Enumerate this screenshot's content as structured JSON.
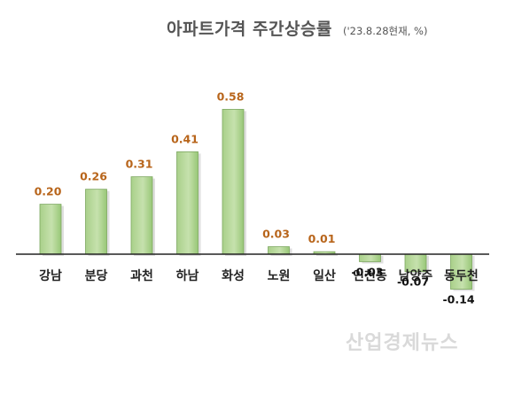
{
  "chart_data": {
    "type": "bar",
    "title": "아파트가격 주간상승률",
    "subtitle": "('23.8.28현재, %)",
    "categories": [
      "강남",
      "분당",
      "과천",
      "하남",
      "화성",
      "노원",
      "일산",
      "인천동",
      "남양주",
      "동두천"
    ],
    "values": [
      0.2,
      0.26,
      0.31,
      0.41,
      0.58,
      0.03,
      0.01,
      -0.03,
      -0.07,
      -0.14
    ],
    "value_labels": [
      "0.20",
      "0.26",
      "0.31",
      "0.41",
      "0.58",
      "0.03",
      "0.01",
      "-0.03",
      "-0.07",
      "-0.14"
    ],
    "ylim": [
      -0.2,
      0.6
    ],
    "grid": false,
    "colors": {
      "bar_light": "#c9e2ae",
      "bar_dark": "#8fc36c",
      "value_label": "#b8651b"
    }
  },
  "watermark": "산업경제뉴스"
}
